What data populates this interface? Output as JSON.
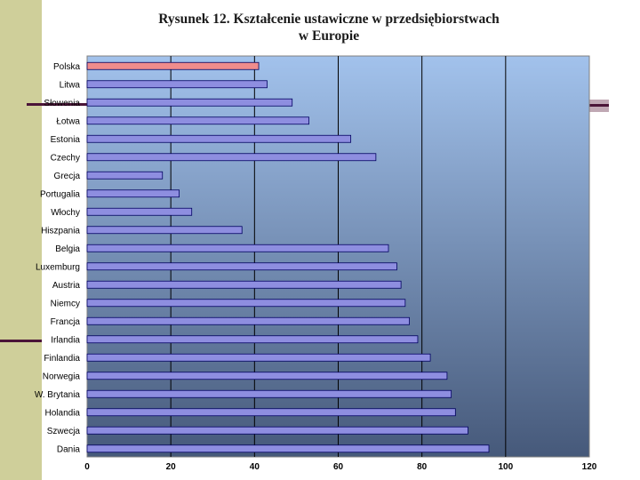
{
  "chart_data": {
    "type": "bar",
    "orientation": "horizontal",
    "title_lines": [
      "Rysunek 12. Kształcenie ustawiczne w przedsiębiorstwach",
      "w Europie"
    ],
    "categories": [
      "Polska",
      "Litwa",
      "Słowenia",
      "Łotwa",
      "Estonia",
      "Czechy",
      "Grecja",
      "Portugalia",
      "Włochy",
      "Hiszpania",
      "Belgia",
      "Luxemburg",
      "Austria",
      "Niemcy",
      "Francja",
      "Irlandia",
      "Finlandia",
      "Norwegia",
      "W. Brytania",
      "Holandia",
      "Szwecja",
      "Dania"
    ],
    "values": [
      41,
      43,
      49,
      53,
      63,
      69,
      18,
      22,
      25,
      37,
      72,
      74,
      75,
      76,
      77,
      79,
      82,
      86,
      87,
      88,
      91,
      96
    ],
    "highlight_category": "Polska",
    "xlim": [
      0,
      120
    ],
    "xticks": [
      0,
      20,
      40,
      60,
      80,
      100,
      120
    ],
    "grid": "vertical",
    "legend": "none",
    "xlabel": "",
    "ylabel": ""
  },
  "colors": {
    "bar": "#8e8ee0",
    "bar_highlight": "#f08c8c",
    "bar_edge": "#000060",
    "plot_top": "#a2c2ec",
    "plot_bottom": "#46597a",
    "grid": "#000000"
  }
}
